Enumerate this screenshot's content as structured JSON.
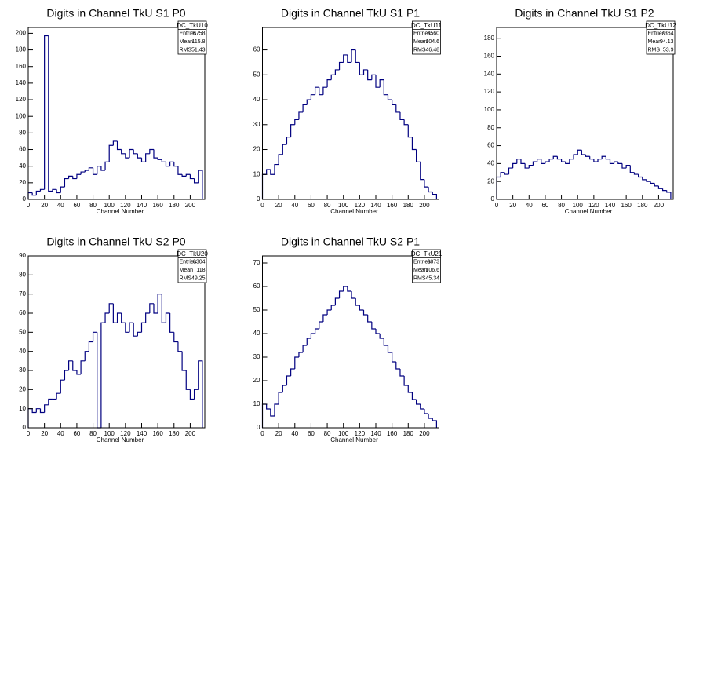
{
  "chart_data": [
    {
      "type": "histogram",
      "title": "Digits in Channel TkU S1 P0",
      "x_label": "Channel Number",
      "color": "#000080",
      "stats": {
        "name": "DC_TkU10",
        "rows": [
          {
            "label": "Entries",
            "value": 6758
          },
          {
            "label": "Mean",
            "value": 115.8
          },
          {
            "label": "RMS",
            "value": 51.43
          }
        ]
      },
      "bins": [
        0,
        5,
        10,
        15,
        20,
        25,
        30,
        35,
        40,
        45,
        50,
        55,
        60,
        65,
        70,
        75,
        80,
        85,
        90,
        95,
        100,
        105,
        110,
        115,
        120,
        125,
        130,
        135,
        140,
        145,
        150,
        155,
        160,
        165,
        170,
        175,
        180,
        185,
        190,
        195,
        200,
        205,
        210,
        215
      ],
      "values": [
        8,
        5,
        10,
        12,
        197,
        10,
        12,
        8,
        15,
        25,
        28,
        25,
        30,
        33,
        35,
        38,
        30,
        40,
        35,
        45,
        65,
        70,
        60,
        55,
        50,
        60,
        55,
        50,
        45,
        55,
        60,
        50,
        48,
        45,
        40,
        45,
        40,
        30,
        28,
        30,
        25,
        20,
        35
      ],
      "xlim": [
        0,
        218
      ],
      "xticks": [
        0,
        20,
        40,
        60,
        80,
        100,
        120,
        140,
        160,
        180,
        200
      ],
      "ylim": [
        0,
        207
      ],
      "yticks": [
        0,
        20,
        40,
        60,
        80,
        100,
        120,
        140,
        160,
        180,
        200
      ]
    },
    {
      "type": "histogram",
      "title": "Digits in Channel TkU S1 P1",
      "x_label": "Channel Number",
      "color": "#000080",
      "stats": {
        "name": "DC_TkU11",
        "rows": [
          {
            "label": "Entries",
            "value": 6560
          },
          {
            "label": "Mean",
            "value": 104.6
          },
          {
            "label": "RMS",
            "value": 46.48
          }
        ]
      },
      "bins": [
        0,
        5,
        10,
        15,
        20,
        25,
        30,
        35,
        40,
        45,
        50,
        55,
        60,
        65,
        70,
        75,
        80,
        85,
        90,
        95,
        100,
        105,
        110,
        115,
        120,
        125,
        130,
        135,
        140,
        145,
        150,
        155,
        160,
        165,
        170,
        175,
        180,
        185,
        190,
        195,
        200,
        205,
        210,
        215
      ],
      "values": [
        10,
        12,
        10,
        14,
        18,
        22,
        25,
        30,
        32,
        35,
        38,
        40,
        42,
        45,
        42,
        45,
        48,
        50,
        52,
        55,
        58,
        55,
        60,
        55,
        50,
        52,
        48,
        50,
        45,
        48,
        42,
        40,
        38,
        35,
        32,
        30,
        25,
        20,
        15,
        8,
        5,
        3,
        2
      ],
      "xlim": [
        0,
        218
      ],
      "xticks": [
        0,
        20,
        40,
        60,
        80,
        100,
        120,
        140,
        160,
        180,
        200
      ],
      "ylim": [
        0,
        69
      ],
      "yticks": [
        0,
        10,
        20,
        30,
        40,
        50,
        60
      ]
    },
    {
      "type": "histogram",
      "title": "Digits in Channel TkU S1 P2",
      "x_label": "Channel Number",
      "color": "#000080",
      "stats": {
        "name": "DC_TkU12",
        "rows": [
          {
            "label": "Entries",
            "value": 7364
          },
          {
            "label": "Mean",
            "value": 94.13
          },
          {
            "label": "RMS",
            "value": 53.9
          }
        ]
      },
      "bins": [
        0,
        5,
        10,
        15,
        20,
        25,
        30,
        35,
        40,
        45,
        50,
        55,
        60,
        65,
        70,
        75,
        80,
        85,
        90,
        95,
        100,
        105,
        110,
        115,
        120,
        125,
        130,
        135,
        140,
        145,
        150,
        155,
        160,
        165,
        170,
        175,
        180,
        185,
        190,
        195,
        200,
        205,
        210,
        215
      ],
      "values": [
        25,
        30,
        28,
        35,
        40,
        45,
        40,
        35,
        38,
        42,
        45,
        40,
        42,
        45,
        48,
        45,
        42,
        40,
        45,
        50,
        55,
        50,
        48,
        45,
        42,
        45,
        48,
        45,
        40,
        42,
        40,
        35,
        38,
        30,
        28,
        25,
        22,
        20,
        18,
        15,
        12,
        10,
        8
      ],
      "xlim": [
        0,
        218
      ],
      "xticks": [
        0,
        20,
        40,
        60,
        80,
        100,
        120,
        140,
        160,
        180,
        200
      ],
      "ylim": [
        0,
        192
      ],
      "yticks": [
        0,
        20,
        40,
        60,
        80,
        100,
        120,
        140,
        160,
        180
      ]
    },
    {
      "type": "histogram",
      "title": "Digits in Channel TkU S2 P0",
      "x_label": "Channel Number",
      "color": "#000080",
      "stats": {
        "name": "DC_TkU20",
        "rows": [
          {
            "label": "Entries",
            "value": 8304
          },
          {
            "label": "Mean",
            "value": 118
          },
          {
            "label": "RMS",
            "value": 49.25
          }
        ]
      },
      "bins": [
        0,
        5,
        10,
        15,
        20,
        25,
        30,
        35,
        40,
        45,
        50,
        55,
        60,
        65,
        70,
        75,
        80,
        85,
        90,
        95,
        100,
        105,
        110,
        115,
        120,
        125,
        130,
        135,
        140,
        145,
        150,
        155,
        160,
        165,
        170,
        175,
        180,
        185,
        190,
        195,
        200,
        205,
        210,
        215
      ],
      "values": [
        10,
        8,
        10,
        8,
        12,
        15,
        15,
        18,
        25,
        30,
        35,
        30,
        28,
        35,
        40,
        45,
        50,
        0,
        55,
        60,
        65,
        55,
        60,
        55,
        50,
        55,
        48,
        50,
        55,
        60,
        65,
        60,
        70,
        55,
        60,
        50,
        45,
        40,
        30,
        20,
        15,
        20,
        35
      ],
      "xlim": [
        0,
        218
      ],
      "xticks": [
        0,
        20,
        40,
        60,
        80,
        100,
        120,
        140,
        160,
        180,
        200
      ],
      "ylim": [
        0,
        90
      ],
      "yticks": [
        0,
        10,
        20,
        30,
        40,
        50,
        60,
        70,
        80,
        90
      ]
    },
    {
      "type": "histogram",
      "title": "Digits in Channel TkU S2 P1",
      "x_label": "Channel Number",
      "color": "#000080",
      "stats": {
        "name": "DC_TkU21",
        "rows": [
          {
            "label": "Entries",
            "value": 6873
          },
          {
            "label": "Mean",
            "value": 106.6
          },
          {
            "label": "RMS",
            "value": 45.34
          }
        ]
      },
      "bins": [
        0,
        5,
        10,
        15,
        20,
        25,
        30,
        35,
        40,
        45,
        50,
        55,
        60,
        65,
        70,
        75,
        80,
        85,
        90,
        95,
        100,
        105,
        110,
        115,
        120,
        125,
        130,
        135,
        140,
        145,
        150,
        155,
        160,
        165,
        170,
        175,
        180,
        185,
        190,
        195,
        200,
        205,
        210,
        215
      ],
      "values": [
        10,
        8,
        5,
        10,
        15,
        18,
        22,
        25,
        30,
        32,
        35,
        38,
        40,
        42,
        45,
        48,
        50,
        52,
        55,
        58,
        60,
        58,
        55,
        52,
        50,
        48,
        45,
        42,
        40,
        38,
        35,
        32,
        28,
        25,
        22,
        18,
        15,
        12,
        10,
        8,
        6,
        4,
        3
      ],
      "xlim": [
        0,
        218
      ],
      "xticks": [
        0,
        20,
        40,
        60,
        80,
        100,
        120,
        140,
        160,
        180,
        200
      ],
      "ylim": [
        0,
        73
      ],
      "yticks": [
        0,
        10,
        20,
        30,
        40,
        50,
        60,
        70
      ]
    }
  ]
}
